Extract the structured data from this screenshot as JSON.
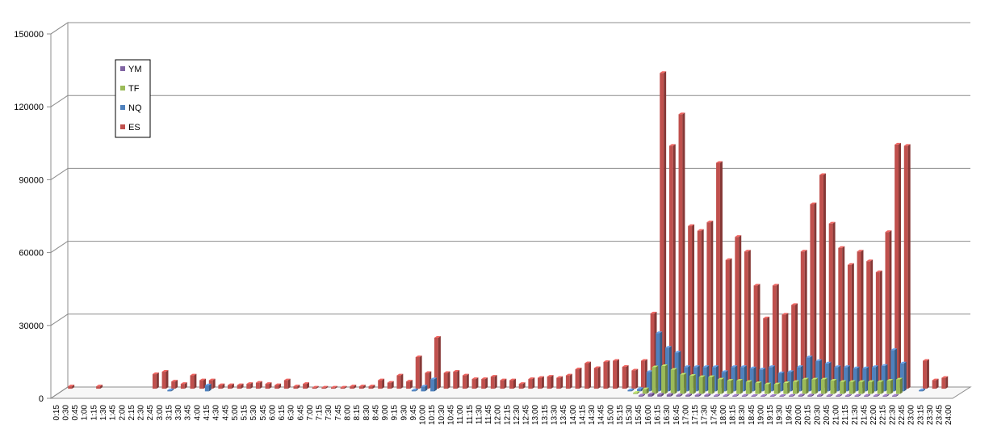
{
  "chart_data": {
    "type": "bar",
    "title": "",
    "xlabel": "",
    "ylabel": "",
    "ylim": [
      0,
      150000
    ],
    "y_ticks": [
      "0",
      "30000",
      "60000",
      "90000",
      "120000",
      "150000"
    ],
    "y_tick_values": [
      0,
      30000,
      60000,
      90000,
      120000,
      150000
    ],
    "grid": true,
    "legend_position": "top-left",
    "categories": [
      "0:15",
      "0:30",
      "0:45",
      "1:00",
      "1:15",
      "1:30",
      "1:45",
      "2:00",
      "2:15",
      "2:30",
      "2:45",
      "3:00",
      "3:15",
      "3:30",
      "3:45",
      "4:00",
      "4:15",
      "4:30",
      "4:45",
      "5:00",
      "5:15",
      "5:30",
      "5:45",
      "6:00",
      "6:15",
      "6:30",
      "6:45",
      "7:00",
      "7:15",
      "7:30",
      "7:45",
      "8:00",
      "8:15",
      "8:30",
      "8:45",
      "9:00",
      "9:15",
      "9:30",
      "9:45",
      "10:00",
      "10:15",
      "10:30",
      "10:45",
      "11:00",
      "11:15",
      "11:30",
      "11:45",
      "12:00",
      "12:15",
      "12:30",
      "12:45",
      "13:00",
      "13:15",
      "13:30",
      "13:45",
      "14:00",
      "14:15",
      "14:30",
      "14:45",
      "15:00",
      "15:15",
      "15:30",
      "15:45",
      "16:00",
      "16:15",
      "16:30",
      "16:45",
      "17:00",
      "17:15",
      "17:30",
      "17:45",
      "18:00",
      "18:15",
      "18:30",
      "18:45",
      "19:00",
      "19:15",
      "19:30",
      "19:45",
      "20:00",
      "20:15",
      "20:30",
      "20:45",
      "21:00",
      "21:15",
      "21:30",
      "21:45",
      "22:00",
      "22:15",
      "22:30",
      "22:45",
      "23:00",
      "23:15",
      "23:30",
      "23:45",
      "24:00"
    ],
    "series": [
      {
        "name": "YM",
        "color": "#8064A2",
        "values": [
          0,
          0,
          0,
          0,
          0,
          0,
          0,
          0,
          0,
          0,
          0,
          0,
          0,
          0,
          0,
          0,
          0,
          0,
          0,
          0,
          0,
          0,
          0,
          0,
          0,
          0,
          0,
          0,
          0,
          0,
          0,
          0,
          0,
          0,
          0,
          0,
          0,
          0,
          0,
          0,
          0,
          0,
          0,
          0,
          0,
          0,
          0,
          0,
          0,
          0,
          0,
          0,
          0,
          0,
          0,
          0,
          0,
          0,
          0,
          0,
          0,
          0,
          500,
          1000,
          900,
          800,
          600,
          600,
          600,
          600,
          400,
          400,
          400,
          400,
          300,
          300,
          300,
          300,
          400,
          500,
          500,
          500,
          400,
          400,
          400,
          400,
          400,
          400,
          400,
          400,
          0,
          0,
          0,
          0,
          0,
          0
        ]
      },
      {
        "name": "TF",
        "color": "#9BBB59",
        "values": [
          0,
          0,
          0,
          0,
          0,
          0,
          0,
          0,
          0,
          0,
          0,
          0,
          0,
          0,
          0,
          0,
          0,
          0,
          0,
          0,
          0,
          0,
          0,
          0,
          0,
          0,
          0,
          0,
          0,
          0,
          0,
          0,
          0,
          0,
          0,
          0,
          0,
          0,
          0,
          0,
          0,
          0,
          0,
          0,
          0,
          0,
          0,
          0,
          0,
          0,
          0,
          0,
          0,
          0,
          0,
          0,
          0,
          0,
          0,
          0,
          0,
          500,
          2000,
          11000,
          11500,
          10000,
          8000,
          7500,
          7000,
          7000,
          6000,
          5500,
          5500,
          5000,
          4500,
          4000,
          4000,
          4500,
          5000,
          6000,
          6000,
          6000,
          5500,
          5000,
          5000,
          5000,
          5000,
          5000,
          5500,
          6000,
          0,
          0,
          0,
          0,
          0,
          0
        ]
      },
      {
        "name": "NQ",
        "color": "#4F81BD",
        "values": [
          0,
          0,
          0,
          0,
          0,
          0,
          0,
          0,
          0,
          0,
          0,
          500,
          0,
          0,
          0,
          2500,
          0,
          0,
          0,
          0,
          0,
          0,
          0,
          0,
          0,
          0,
          0,
          0,
          0,
          0,
          0,
          0,
          0,
          0,
          0,
          0,
          0,
          500,
          2000,
          5000,
          0,
          0,
          0,
          0,
          0,
          0,
          0,
          0,
          0,
          0,
          0,
          0,
          0,
          0,
          0,
          0,
          0,
          0,
          0,
          0,
          500,
          1000,
          8000,
          24000,
          18000,
          16000,
          10000,
          10000,
          10000,
          10000,
          8000,
          10000,
          10000,
          9500,
          9000,
          10000,
          7500,
          8000,
          10000,
          14000,
          12500,
          11500,
          10000,
          10000,
          9500,
          9500,
          10000,
          10500,
          17000,
          11500,
          0,
          500,
          0,
          0,
          0,
          0
        ]
      },
      {
        "name": "ES",
        "color": "#C0504D",
        "values": [
          1000,
          0,
          0,
          1000,
          0,
          0,
          0,
          0,
          0,
          6000,
          7000,
          3000,
          2000,
          5500,
          3500,
          3500,
          1500,
          1500,
          1500,
          2000,
          2500,
          2000,
          1500,
          3500,
          1000,
          2000,
          500,
          500,
          500,
          500,
          1000,
          1000,
          1000,
          3500,
          2500,
          5500,
          3000,
          13000,
          6500,
          21000,
          6500,
          7000,
          5500,
          4000,
          4000,
          5000,
          3500,
          3500,
          2000,
          4000,
          4500,
          5000,
          4500,
          5500,
          8000,
          10500,
          8500,
          11000,
          11500,
          9000,
          7500,
          11500,
          31000,
          130000,
          100000,
          113000,
          67000,
          65000,
          68500,
          93000,
          53000,
          62500,
          56500,
          42500,
          29000,
          42500,
          30500,
          34500,
          56500,
          76000,
          88000,
          68000,
          58000,
          51000,
          56500,
          52500,
          48000,
          64500,
          100500,
          100000,
          0,
          11500,
          3500,
          4500,
          0,
          0
        ]
      }
    ]
  }
}
